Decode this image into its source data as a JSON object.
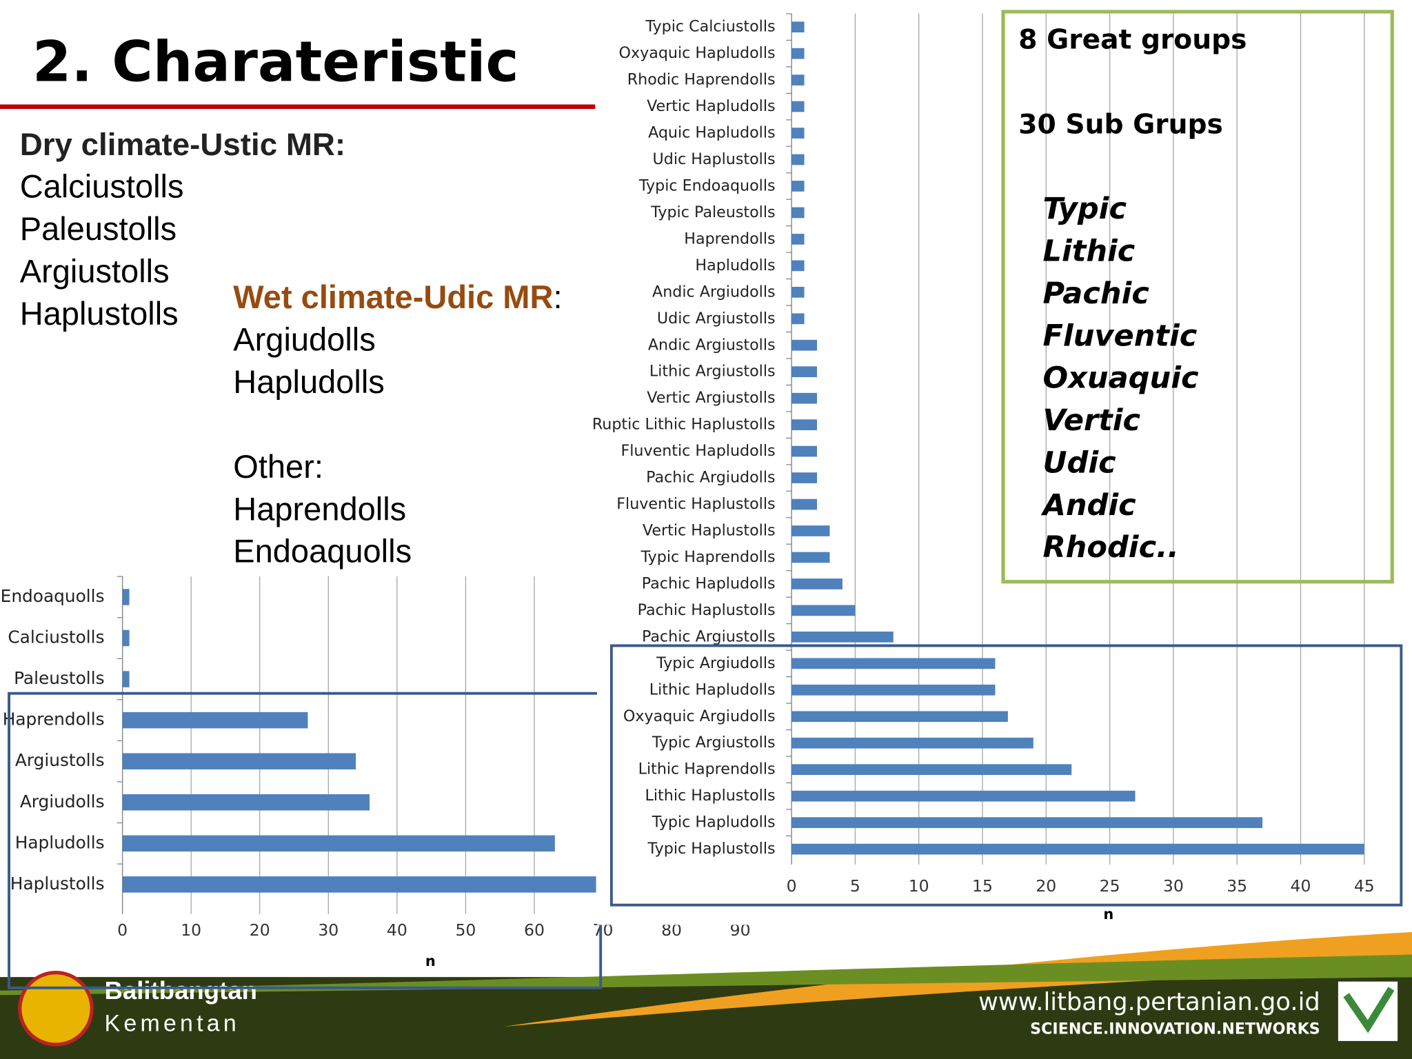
{
  "slide": {
    "title": "2. Charateristic",
    "dry_heading": "Dry climate-Ustic MR:",
    "dry_list": [
      "Calciustolls",
      "Paleustolls",
      "Argiustolls",
      "Haplustolls"
    ],
    "wet_heading": "Wet climate-Udic MR",
    "wet_separator": ":",
    "wet_list": [
      "Argiudolls",
      "Hapludolls"
    ],
    "other_heading": "Other:",
    "other_list": [
      "Haprendolls",
      "Endoaquolls"
    ],
    "box_line1": "8 Great groups",
    "box_line2": "30 Sub Grups",
    "box_list": [
      "Typic",
      "Lithic",
      "Pachic",
      "Fluventic",
      "Oxuaquic",
      "Vertic",
      "Udic",
      "Andic",
      "Rhodic.."
    ],
    "footer_org1": "Balitbangtan",
    "footer_org2": "Kementan",
    "footer_url": "www.litbang.pertanian.go.id",
    "footer_tagline": "SCIENCE.INNOVATION.NETWORKS"
  },
  "chart_data": [
    {
      "type": "bar",
      "orientation": "horizontal",
      "x_label": "n",
      "color": "#4f81bd",
      "grid": true,
      "categories": [
        "Endoaquolls",
        "Calciustolls",
        "Paleustolls",
        "Haprendolls",
        "Argiustolls",
        "Argiudolls",
        "Hapludolls",
        "Haplustolls"
      ],
      "values": [
        1,
        1,
        1,
        27,
        34,
        36,
        63,
        69
      ],
      "xlim": [
        0,
        90
      ],
      "xticks": [
        0,
        10,
        20,
        30,
        40,
        50,
        60,
        70,
        80,
        90
      ]
    },
    {
      "type": "bar",
      "orientation": "horizontal",
      "x_label": "n",
      "color": "#4f81bd",
      "grid": true,
      "categories": [
        "Typic Calciustolls",
        "Oxyaquic Hapludolls",
        "Rhodic Haprendolls",
        "Vertic Hapludolls",
        "Aquic Hapludolls",
        "Udic Haplustolls",
        "Typic Endoaquolls",
        "Typic Paleustolls",
        "Haprendolls",
        "Hapludolls",
        "Andic Argiudolls",
        "Udic Argiustolls",
        "Andic Argiustolls",
        "Lithic Argiustolls",
        "Vertic Argiustolls",
        "Ruptic Lithic Haplustolls",
        "Fluventic Hapludolls",
        "Pachic Argiudolls",
        "Fluventic Haplustolls",
        "Vertic Haplustolls",
        "Typic Haprendolls",
        "Pachic Hapludolls",
        "Pachic Haplustolls",
        "Pachic Argiustolls",
        "Typic Argiudolls",
        "Lithic Hapludolls",
        "Oxyaquic Argiudolls",
        "Typic Argiustolls",
        "Lithic Haprendolls",
        "Lithic Haplustolls",
        "Typic Hapludolls",
        "Typic Haplustolls"
      ],
      "values": [
        1,
        1,
        1,
        1,
        1,
        1,
        1,
        1,
        1,
        1,
        1,
        1,
        2,
        2,
        2,
        2,
        2,
        2,
        2,
        3,
        3,
        4,
        5,
        8,
        16,
        16,
        17,
        19,
        22,
        27,
        37,
        45
      ],
      "xlim": [
        0,
        45
      ],
      "xticks": [
        0,
        5,
        10,
        15,
        20,
        25,
        30,
        35,
        40,
        45
      ]
    }
  ]
}
